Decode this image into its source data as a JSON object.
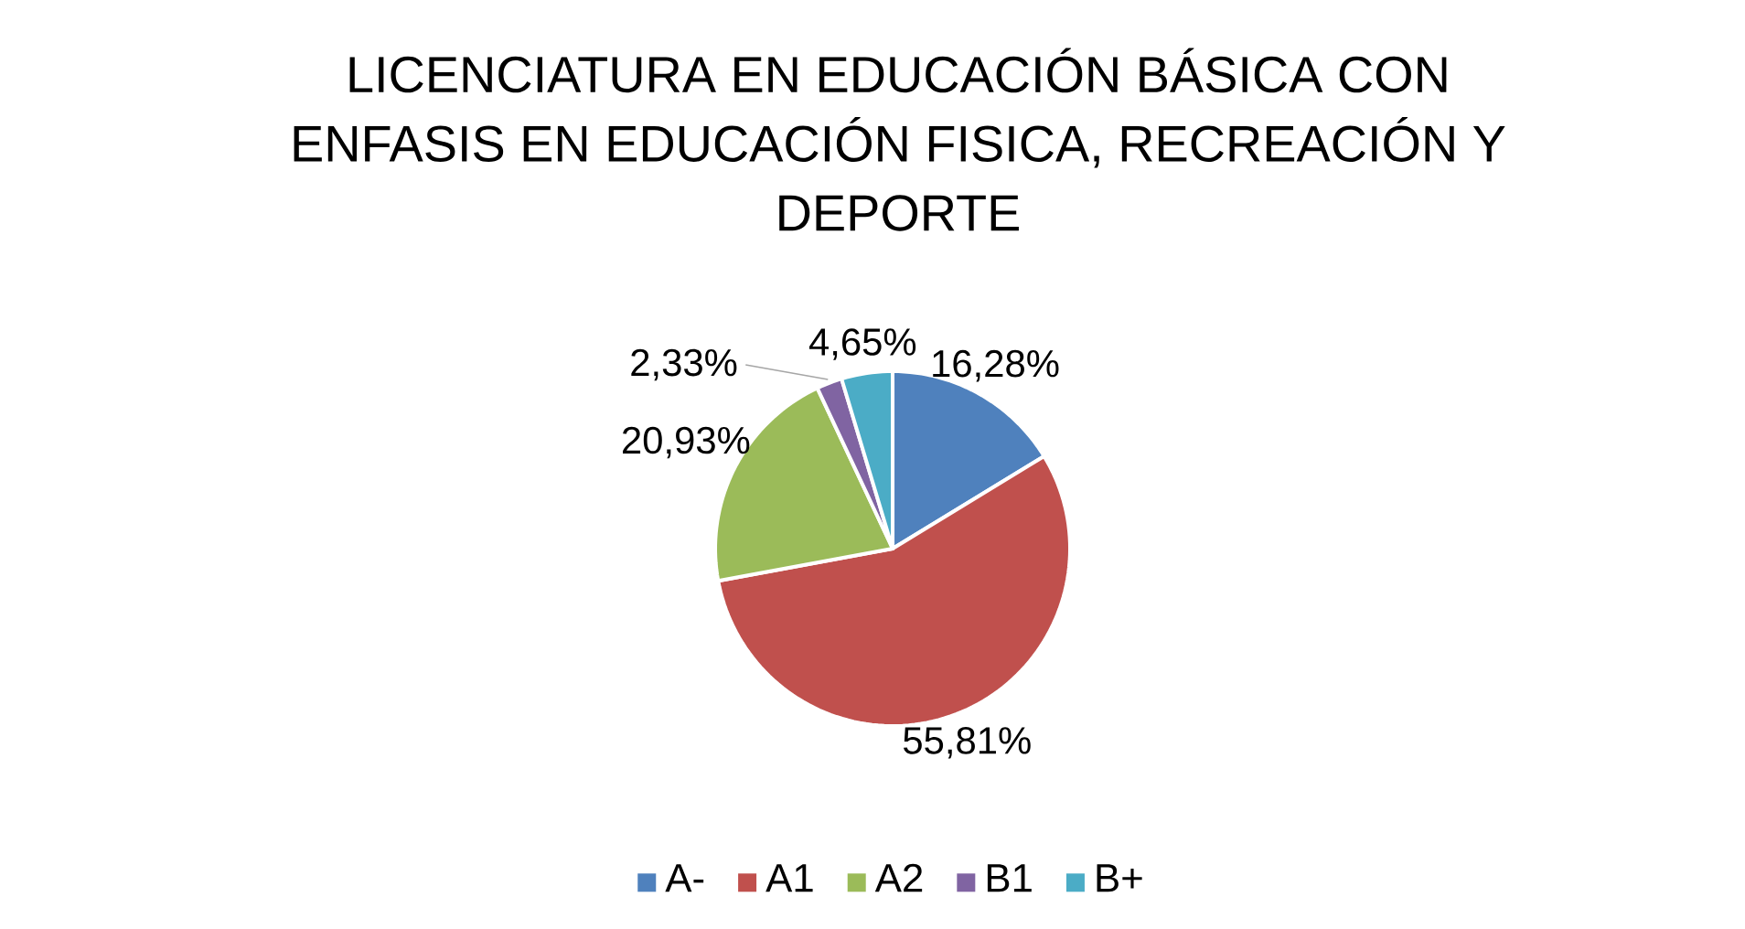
{
  "chart_data": {
    "type": "pie",
    "title": "LICENCIATURA EN EDUCACIÓN BÁSICA CON ENFASIS EN EDUCACIÓN FISICA, RECREACIÓN Y DEPORTE",
    "categories": [
      "A-",
      "A1",
      "A2",
      "B1",
      "B+"
    ],
    "values": [
      16.28,
      55.81,
      20.93,
      2.33,
      4.65
    ],
    "value_labels": [
      "16,28%",
      "55,81%",
      "20,93%",
      "2,33%",
      "4,65%"
    ],
    "colors": [
      "#4f81bd",
      "#c0504d",
      "#9bbb59",
      "#8064a2",
      "#4bacc6"
    ],
    "legend": "bottom"
  }
}
